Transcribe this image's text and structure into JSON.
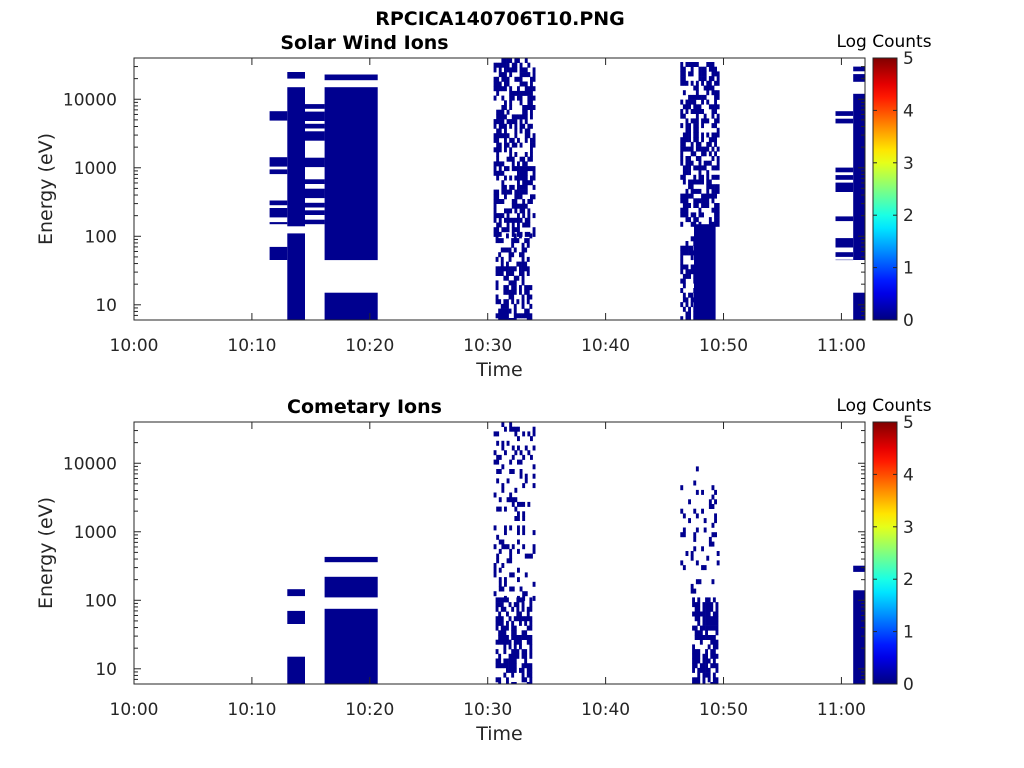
{
  "figure": {
    "title": "RPCICA140706T10.PNG"
  },
  "chart_data": [
    {
      "type": "heatmap",
      "title": "Solar Wind Ions",
      "xlabel": "Time",
      "ylabel": "Energy (eV)",
      "xlim": [
        "10:00",
        "11:02"
      ],
      "ylim": [
        6,
        40000
      ],
      "y_scale": "log",
      "x_ticks": [
        "10:00",
        "10:10",
        "10:20",
        "10:30",
        "10:40",
        "10:50",
        "11:00"
      ],
      "y_ticks": [
        "10",
        "100",
        "1000",
        "10000"
      ],
      "colorbar": {
        "label": "Log Counts",
        "range": [
          0,
          5
        ],
        "ticks": [
          "0",
          "1",
          "2",
          "3",
          "4",
          "5"
        ],
        "colormap": "jet"
      },
      "fill_color": "#00008f",
      "blocks": [
        {
          "t": [
            "10:11:30",
            "10:13:00"
          ],
          "e": [
            45,
            70
          ]
        },
        {
          "t": [
            "10:11:30",
            "10:13:00"
          ],
          "e": [
            150,
            6700
          ],
          "striped": true
        },
        {
          "t": [
            "10:13:00",
            "10:14:30"
          ],
          "e": [
            6,
            110
          ]
        },
        {
          "t": [
            "10:13:00",
            "10:14:30"
          ],
          "e": [
            140,
            15000
          ]
        },
        {
          "t": [
            "10:13:00",
            "10:14:30"
          ],
          "e": [
            20000,
            25000
          ]
        },
        {
          "t": [
            "10:14:30",
            "10:16:10"
          ],
          "e": [
            150,
            8500
          ],
          "striped": true
        },
        {
          "t": [
            "10:16:10",
            "10:20:40"
          ],
          "e": [
            6,
            15
          ]
        },
        {
          "t": [
            "10:16:10",
            "10:20:40"
          ],
          "e": [
            45,
            15000
          ]
        },
        {
          "t": [
            "10:16:10",
            "10:20:40"
          ],
          "e": [
            19000,
            23000
          ]
        },
        {
          "t": [
            "10:30:40",
            "10:33:40"
          ],
          "e": [
            6,
            110
          ],
          "sparse": true
        },
        {
          "t": [
            "10:30:30",
            "10:34:00"
          ],
          "e": [
            110,
            40000
          ],
          "sparse": true
        },
        {
          "t": [
            "10:46:20",
            "10:47:30"
          ],
          "e": [
            6,
            100
          ],
          "sparse": true
        },
        {
          "t": [
            "10:47:30",
            "10:49:20"
          ],
          "e": [
            6,
            150
          ]
        },
        {
          "t": [
            "10:46:20",
            "10:49:30"
          ],
          "e": [
            150,
            35000
          ],
          "sparse": true
        },
        {
          "t": [
            "10:59:30",
            "11:01:00"
          ],
          "e": [
            45,
            6700
          ],
          "striped": true
        },
        {
          "t": [
            "11:01:00",
            "11:02:30"
          ],
          "e": [
            45,
            12000
          ]
        },
        {
          "t": [
            "11:01:00",
            "11:02:30"
          ],
          "e": [
            6,
            15
          ]
        },
        {
          "t": [
            "11:01:00",
            "11:02:30"
          ],
          "e": [
            18000,
            30000
          ],
          "striped": true
        }
      ]
    },
    {
      "type": "heatmap",
      "title": "Cometary Ions",
      "xlabel": "Time",
      "ylabel": "Energy (eV)",
      "xlim": [
        "10:00",
        "11:02"
      ],
      "ylim": [
        6,
        40000
      ],
      "y_scale": "log",
      "x_ticks": [
        "10:00",
        "10:10",
        "10:20",
        "10:30",
        "10:40",
        "10:50",
        "11:00"
      ],
      "y_ticks": [
        "10",
        "100",
        "1000",
        "10000"
      ],
      "colorbar": {
        "label": "Log Counts",
        "range": [
          0,
          5
        ],
        "ticks": [
          "0",
          "1",
          "2",
          "3",
          "4",
          "5"
        ],
        "colormap": "jet"
      },
      "fill_color": "#00008f",
      "blocks": [
        {
          "t": [
            "10:13:00",
            "10:14:30"
          ],
          "e": [
            6,
            15
          ]
        },
        {
          "t": [
            "10:13:00",
            "10:14:30"
          ],
          "e": [
            45,
            70
          ]
        },
        {
          "t": [
            "10:13:00",
            "10:14:30"
          ],
          "e": [
            115,
            145
          ]
        },
        {
          "t": [
            "10:16:10",
            "10:20:40"
          ],
          "e": [
            6,
            75
          ]
        },
        {
          "t": [
            "10:16:10",
            "10:20:40"
          ],
          "e": [
            110,
            220
          ]
        },
        {
          "t": [
            "10:16:10",
            "10:20:40"
          ],
          "e": [
            360,
            430
          ]
        },
        {
          "t": [
            "10:30:40",
            "10:33:40"
          ],
          "e": [
            6,
            110
          ],
          "sparse": true
        },
        {
          "t": [
            "10:30:30",
            "10:34:00"
          ],
          "e": [
            110,
            40000
          ],
          "sparse": true,
          "density": 0.22
        },
        {
          "t": [
            "10:47:20",
            "10:49:20"
          ],
          "e": [
            6,
            110
          ],
          "sparse": true,
          "density": 0.7
        },
        {
          "t": [
            "10:46:20",
            "10:49:30"
          ],
          "e": [
            110,
            9000
          ],
          "sparse": true,
          "density": 0.12
        },
        {
          "t": [
            "11:01:00",
            "11:02:10"
          ],
          "e": [
            6,
            140
          ]
        },
        {
          "t": [
            "11:01:00",
            "11:02:20"
          ],
          "e": [
            260,
            320
          ]
        }
      ]
    }
  ]
}
